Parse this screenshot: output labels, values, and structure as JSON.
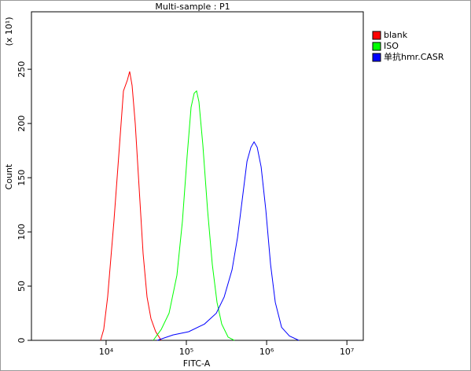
{
  "chart_data": {
    "type": "line",
    "title": "Multi-sample : P1",
    "x_label": "FITC-A",
    "y_label": "Count",
    "y_unit": "(x 10¹)",
    "x_log": true,
    "xlim": [
      1175,
      16000000
    ],
    "ylim": [
      0,
      303
    ],
    "xticks": [
      {
        "value": 10000,
        "label": "10⁴"
      },
      {
        "value": 100000,
        "label": "10⁵"
      },
      {
        "value": 1000000,
        "label": "10⁶"
      },
      {
        "value": 10000000,
        "label": "10⁷"
      }
    ],
    "yticks": [
      0,
      50,
      100,
      150,
      200,
      250
    ],
    "legend": "top-right",
    "series": [
      {
        "name": "blank",
        "color": "#ff0000",
        "x": [
          8530,
          9350,
          10460,
          12530,
          14690,
          16440,
          18410,
          19680,
          21070,
          23070,
          25820,
          28910,
          32370,
          36240,
          41500,
          48560
        ],
        "values": [
          0,
          10,
          40,
          110,
          180,
          230,
          240,
          248,
          235,
          200,
          140,
          80,
          40,
          20,
          8,
          0
        ]
      },
      {
        "name": "ISO",
        "color": "#00ff00",
        "x": [
          38700,
          48600,
          60900,
          76300,
          89300,
          102300,
          114500,
          125400,
          134100,
          143600,
          160700,
          184000,
          210700,
          241100,
          276000,
          331000,
          396000
        ],
        "values": [
          0,
          10,
          25,
          60,
          110,
          170,
          215,
          228,
          230,
          220,
          180,
          120,
          70,
          35,
          15,
          3,
          0
        ]
      },
      {
        "name": "单抗hmr.CASR",
        "color": "#0000ff",
        "x": [
          43400,
          68100,
          106900,
          167800,
          236000,
          295700,
          370500,
          433900,
          496800,
          568800,
          636800,
          697200,
          763200,
          853500,
          977700,
          1119000,
          1282000,
          1536000,
          1924000,
          2522000
        ],
        "values": [
          0,
          5,
          8,
          15,
          25,
          40,
          65,
          95,
          130,
          165,
          178,
          183,
          178,
          160,
          120,
          70,
          35,
          12,
          4,
          0
        ]
      }
    ]
  }
}
